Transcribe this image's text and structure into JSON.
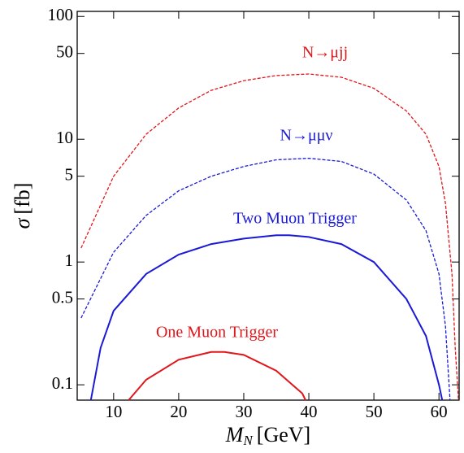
{
  "chart_data": {
    "type": "line",
    "xlabel": {
      "symbol": "M",
      "subscript": "N",
      "unit": "[GeV]"
    },
    "ylabel": {
      "symbol": "σ",
      "unit": "[fb]"
    },
    "xlim": [
      4.4,
      63.1
    ],
    "ylim": [
      0.075,
      110
    ],
    "log_y": true,
    "xticks": [
      10,
      20,
      30,
      40,
      50,
      60
    ],
    "yticks": [
      0.1,
      0.5,
      1,
      5,
      10,
      50,
      100
    ],
    "series": [
      {
        "name": "N→μjj",
        "color": "#e0161b",
        "dashed": true,
        "x": [
          5,
          10,
          15,
          20,
          25,
          30,
          35,
          40,
          45,
          50,
          55,
          58,
          60,
          61,
          62,
          62.5,
          63
        ],
        "values": [
          1.3,
          5,
          11,
          18,
          25,
          30,
          33,
          34,
          32,
          26,
          17,
          11,
          6,
          3,
          0.8,
          0.2,
          0.075
        ]
      },
      {
        "name": "N→μμν",
        "color": "#1a1ad6",
        "dashed": true,
        "x": [
          5,
          10,
          15,
          20,
          25,
          30,
          35,
          40,
          45,
          50,
          55,
          58,
          60,
          61,
          61.7
        ],
        "values": [
          0.35,
          1.2,
          2.4,
          3.8,
          5.0,
          6.0,
          6.8,
          7.0,
          6.6,
          5.2,
          3.2,
          1.8,
          0.8,
          0.3,
          0.075
        ]
      },
      {
        "name": "Two Muon Trigger",
        "color": "#1a1ad6",
        "dashed": false,
        "x": [
          6.5,
          8,
          10,
          15,
          20,
          25,
          30,
          35,
          37,
          40,
          45,
          50,
          55,
          58,
          60,
          60.5
        ],
        "values": [
          0.075,
          0.2,
          0.4,
          0.8,
          1.15,
          1.4,
          1.55,
          1.65,
          1.65,
          1.6,
          1.4,
          1.0,
          0.5,
          0.25,
          0.1,
          0.075
        ]
      },
      {
        "name": "One Muon Trigger",
        "color": "#e0161b",
        "dashed": false,
        "x": [
          12.3,
          15,
          20,
          25,
          27,
          30,
          35,
          39,
          39.5
        ],
        "values": [
          0.075,
          0.11,
          0.16,
          0.185,
          0.185,
          0.175,
          0.13,
          0.085,
          0.075
        ]
      }
    ]
  }
}
